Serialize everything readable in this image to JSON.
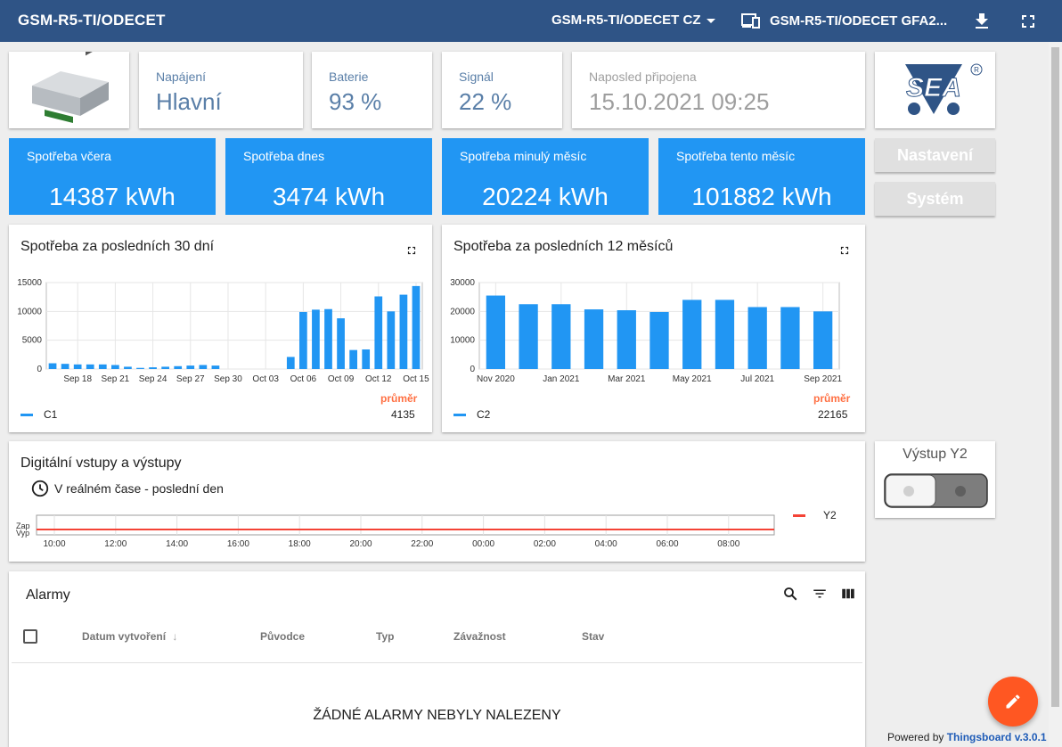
{
  "header": {
    "title": "GSM-R5-TI/ODECET",
    "state_select": "GSM-R5-TI/ODECET CZ",
    "entity_select": "GSM-R5-TI/ODECET GFA2...",
    "icons": [
      "download-icon",
      "fullscreen-icon",
      "devices-icon"
    ]
  },
  "info": {
    "power_label": "Napájení",
    "power_value": "Hlavní",
    "battery_label": "Baterie",
    "battery_value": "93 %",
    "signal_label": "Signál",
    "signal_value": "22 %",
    "last_label": "Naposled připojena",
    "last_value": "15.10.2021 09:25",
    "logo_text": "SEA",
    "logo_mark": "®"
  },
  "consumption": {
    "yesterday_label": "Spotřeba včera",
    "yesterday_value": "14387 kWh",
    "today_label": "Spotřeba dnes",
    "today_value": "3474 kWh",
    "last_month_label": "Spotřeba minulý měsíc",
    "last_month_value": "20224 kWh",
    "this_month_label": "Spotřeba tento měsíc",
    "this_month_value": "101882 kWh"
  },
  "buttons": {
    "settings": "Nastavení",
    "system": "Systém"
  },
  "chart30": {
    "title": "Spotřeba za posledních 30 dní",
    "legend": "C1",
    "avg_label": "průměr",
    "avg_value": "4135"
  },
  "chart12": {
    "title": "Spotřeba za posledních 12 měsíců",
    "legend": "C2",
    "avg_label": "průměr",
    "avg_value": "22165"
  },
  "digital": {
    "title": "Digitální vstupy a výstupy",
    "subtitle": "V reálném čase - poslední den",
    "legend": "Y2",
    "y_on": "Zap",
    "y_off": "Vyp",
    "ticks": [
      "10:00",
      "12:00",
      "14:00",
      "16:00",
      "18:00",
      "20:00",
      "22:00",
      "00:00",
      "02:00",
      "04:00",
      "06:00",
      "08:00"
    ]
  },
  "output": {
    "title": "Výstup Y2",
    "state": "off"
  },
  "alarms": {
    "title": "Alarmy",
    "columns": [
      "Datum vytvoření",
      "Původce",
      "Typ",
      "Závažnost",
      "Stav"
    ],
    "empty": "ŽÁDNÉ ALARMY NEBYLY NALEZENY"
  },
  "footer": {
    "powered": "Powered by",
    "brand": "Thingsboard v.3.0.1"
  },
  "colors": {
    "header": "#2f5486",
    "accent": "#2196f3",
    "fab": "#ff5722",
    "avg": "#ff7043",
    "line_y2": "#f44336"
  },
  "chart_data": [
    {
      "type": "bar",
      "title": "Spotřeba za posledních 30 dní",
      "series": [
        {
          "name": "C1",
          "values": [
            1000,
            900,
            800,
            800,
            800,
            700,
            400,
            200,
            300,
            400,
            500,
            600,
            700,
            600,
            0,
            0,
            0,
            0,
            0,
            2100,
            9900,
            10300,
            10400,
            8800,
            3300,
            3400,
            12600,
            10000,
            12900,
            14400
          ]
        }
      ],
      "x_tick_labels": [
        "Sep 18",
        "Sep 21",
        "Sep 24",
        "Sep 27",
        "Sep 30",
        "Oct 03",
        "Oct 06",
        "Oct 09",
        "Oct 12",
        "Oct 15"
      ],
      "ylim": [
        0,
        15000
      ],
      "y_ticks": [
        0,
        5000,
        10000,
        15000
      ],
      "grid": true,
      "legend": "bottom-left"
    },
    {
      "type": "bar",
      "title": "Spotřeba za posledních 12 měsíců",
      "series": [
        {
          "name": "C2",
          "values": [
            25500,
            22500,
            22500,
            20700,
            20400,
            19800,
            24000,
            24000,
            21500,
            21500,
            20000
          ]
        }
      ],
      "x_tick_labels": [
        "Nov 2020",
        "Jan 2021",
        "Mar 2021",
        "May 2021",
        "Jul 2021",
        "Sep 2021"
      ],
      "ylim": [
        0,
        30000
      ],
      "y_ticks": [
        0,
        10000,
        20000,
        30000
      ],
      "grid": true,
      "legend": "bottom-left"
    }
  ]
}
